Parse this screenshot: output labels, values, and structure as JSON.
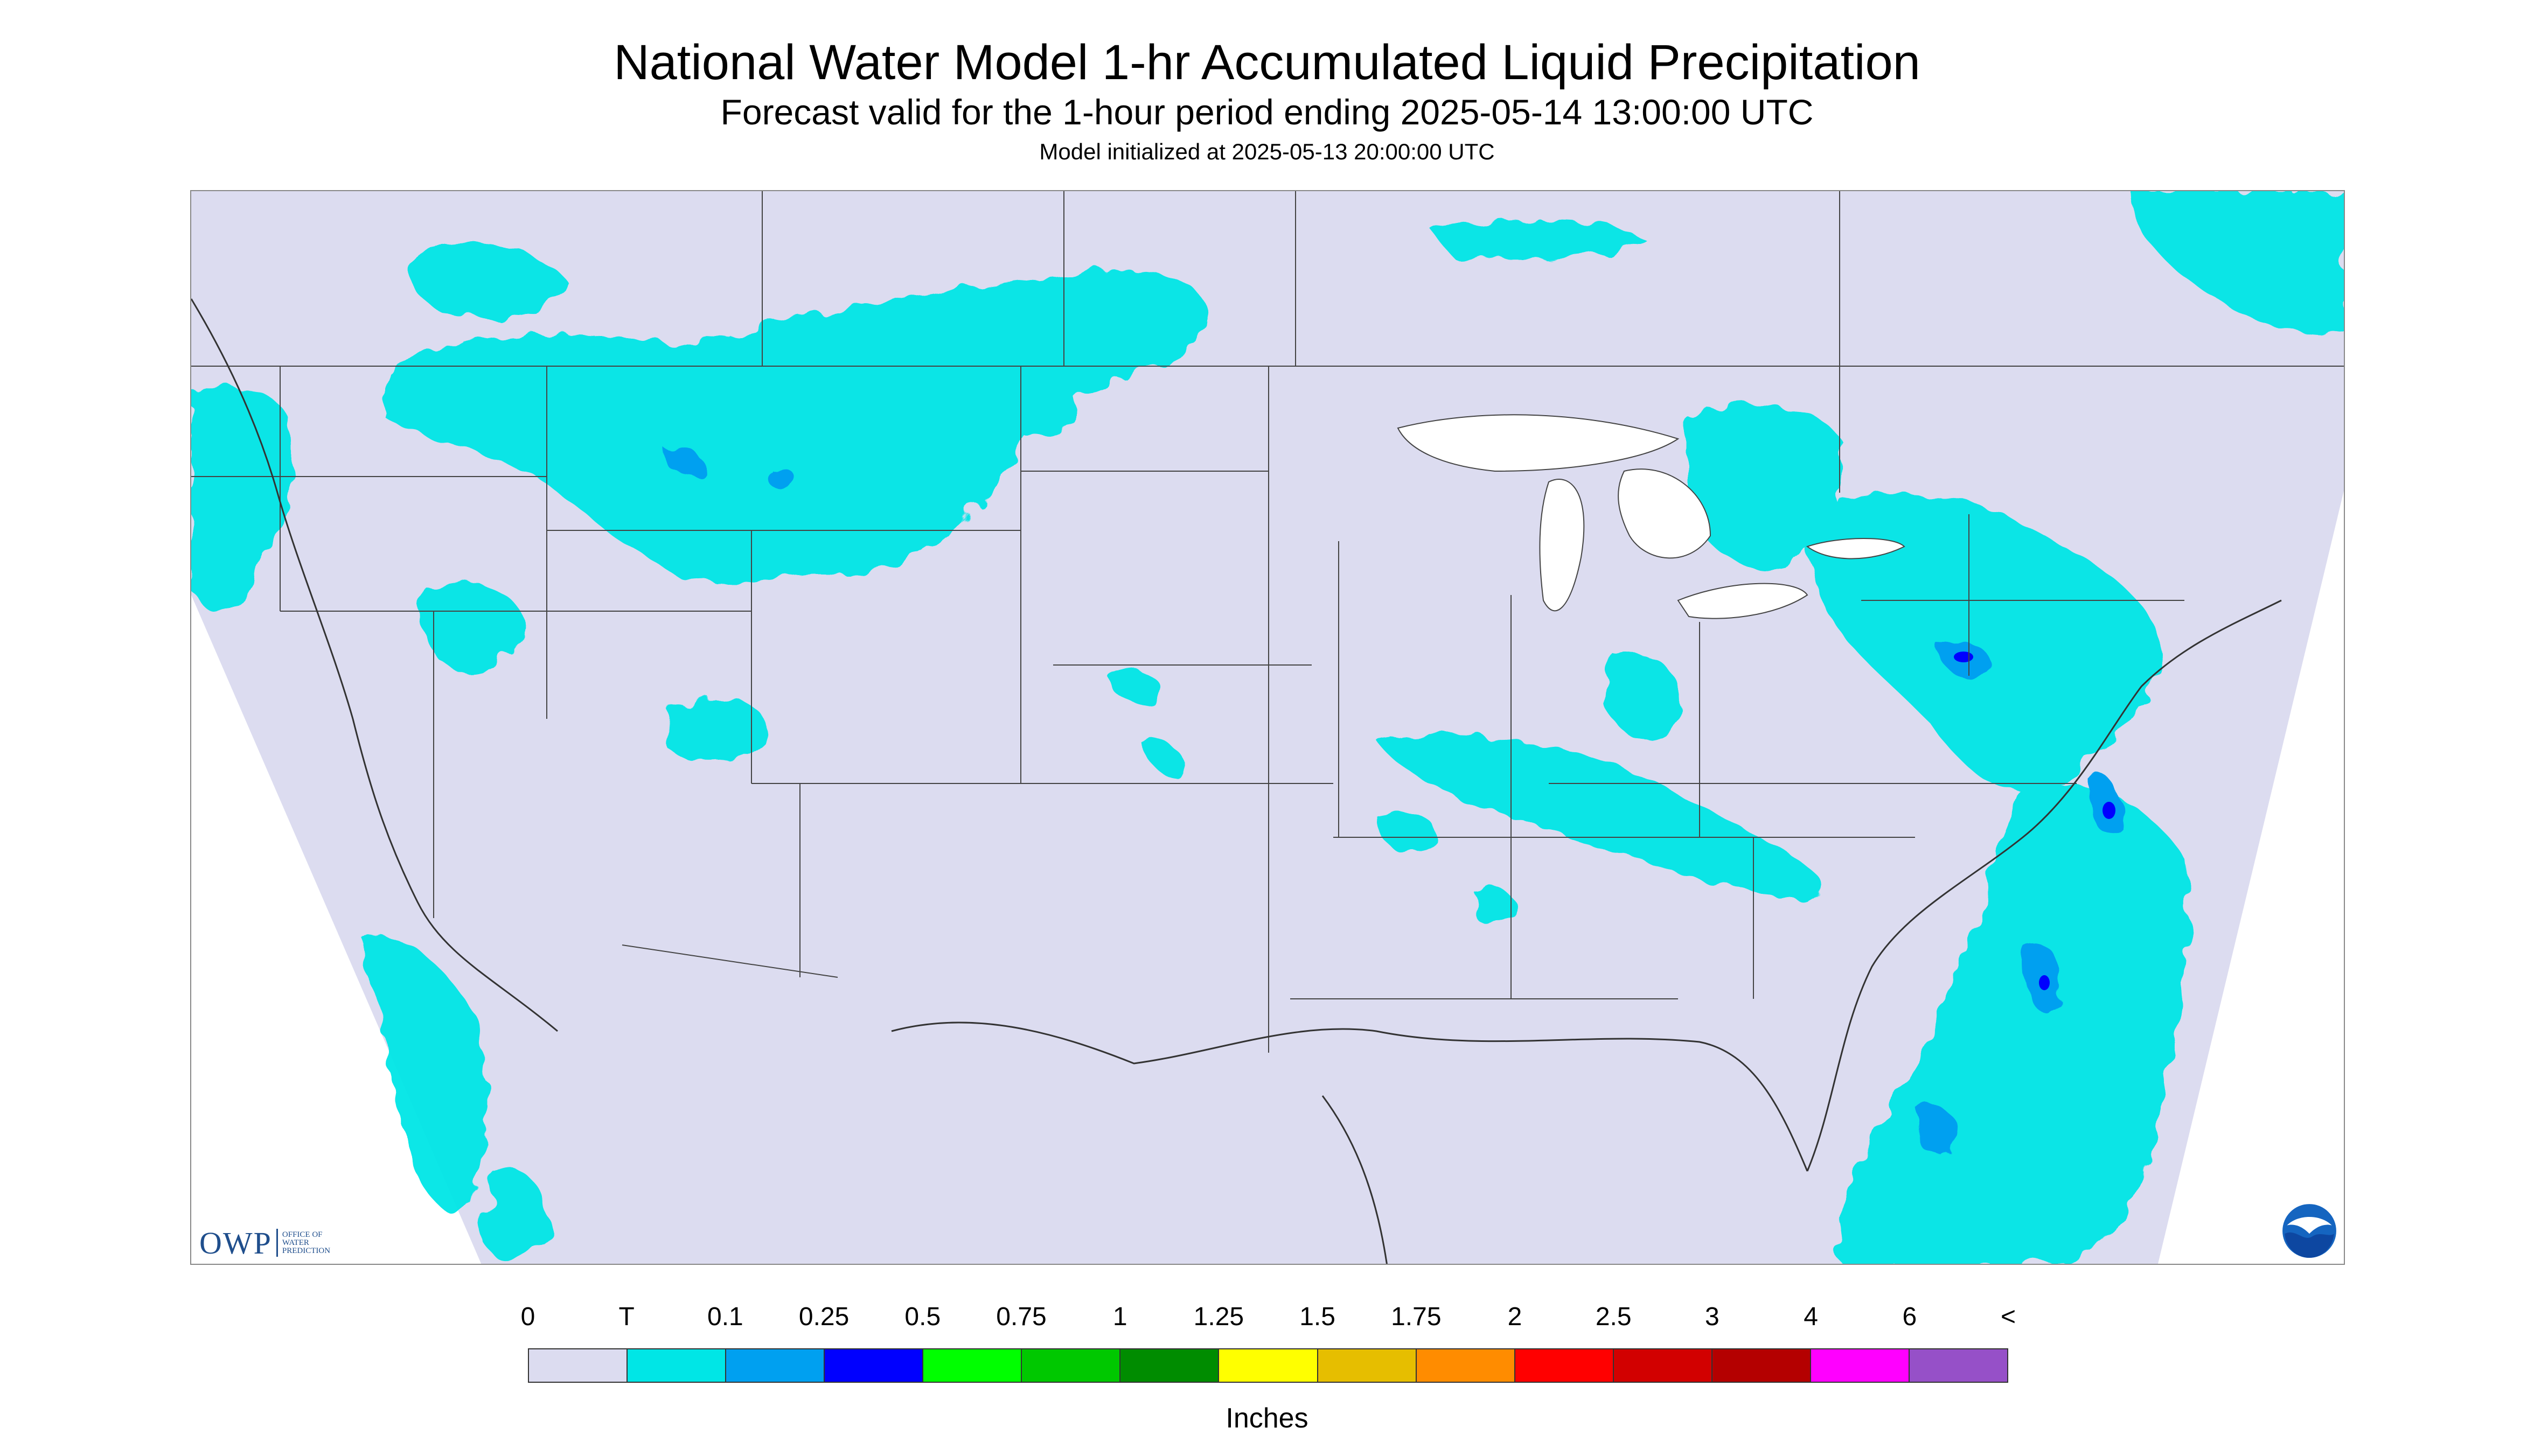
{
  "title": "National Water Model 1-hr Accumulated Liquid Precipitation",
  "subtitle": "Forecast valid for the 1-hour period ending 2025-05-14 13:00:00 UTC",
  "initialized": "Model initialized at 2025-05-13 20:00:00 UTC",
  "map": {
    "region": "CONUS",
    "background_color": "#dcdcf0",
    "water_color": "#ffffff",
    "boundary_color": "#444444"
  },
  "logos": {
    "owp_text": "OWP",
    "owp_subtext": [
      "OFFICE OF",
      "WATER",
      "PREDICTION"
    ],
    "owp_icon": "owp-logo",
    "noaa_icon": "noaa-logo"
  },
  "legend": {
    "ticks": [
      "0",
      "T",
      "0.1",
      "0.25",
      "0.5",
      "0.75",
      "1",
      "1.25",
      "1.5",
      "1.75",
      "2",
      "2.5",
      "3",
      "4",
      "6",
      "<"
    ],
    "colors": [
      "#dcdcf0",
      "#00e6e6",
      "#00a0f0",
      "#0000ff",
      "#00ff00",
      "#00c800",
      "#008c00",
      "#ffff00",
      "#e6be00",
      "#ff8c00",
      "#ff0000",
      "#d20000",
      "#b40000",
      "#ff00ff",
      "#9650c8"
    ],
    "unit_label": "Inches"
  }
}
